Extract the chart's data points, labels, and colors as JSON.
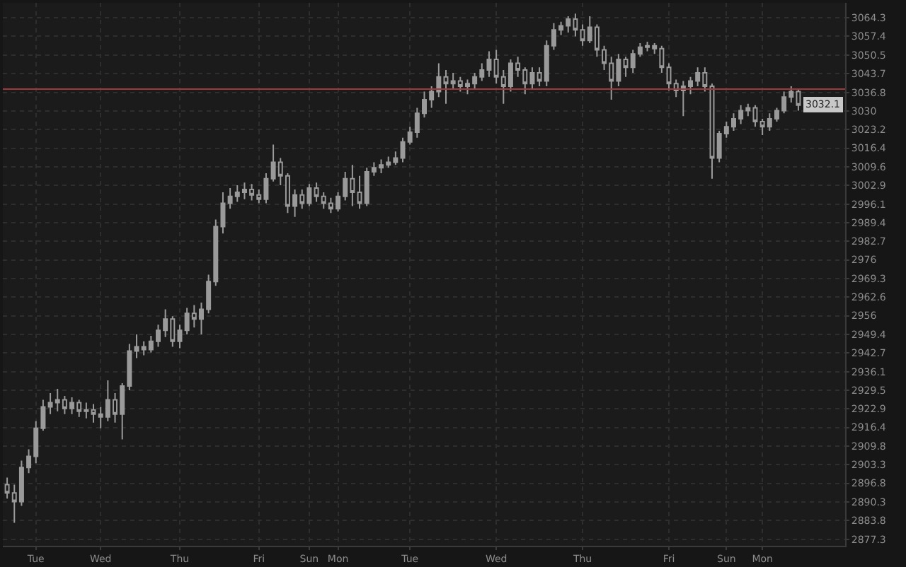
{
  "chart_data": {
    "type": "candlestick",
    "log": "y",
    "grid": true,
    "categories": [
      null,
      null,
      null,
      null,
      "Tue",
      null,
      null,
      null,
      null,
      null,
      null,
      null,
      null,
      "Wed",
      null,
      null,
      null,
      null,
      null,
      null,
      null,
      null,
      null,
      null,
      "Thu",
      null,
      null,
      null,
      null,
      null,
      null,
      null,
      null,
      null,
      null,
      "Fri",
      null,
      null,
      null,
      null,
      null,
      null,
      "Sun",
      null,
      null,
      null,
      "Mon",
      null,
      null,
      null,
      null,
      null,
      null,
      null,
      null,
      null,
      "Tue",
      null,
      null,
      null,
      null,
      null,
      null,
      null,
      null,
      null,
      null,
      null,
      "Wed",
      null,
      null,
      null,
      null,
      null,
      null,
      null,
      null,
      null,
      null,
      null,
      "Thu",
      null,
      null,
      null,
      null,
      null,
      null,
      null,
      null,
      null,
      null,
      null,
      "Fri",
      null,
      null,
      null,
      null,
      null,
      null,
      null,
      "Sun",
      null,
      null,
      null,
      null,
      "Mon",
      null,
      null,
      null,
      null,
      null
    ],
    "ohlc": [
      [
        2896.3,
        2898.8,
        2891.4,
        2893.4
      ],
      [
        2893.4,
        2896.3,
        2883.0,
        2890.4
      ],
      [
        2890.4,
        2904.7,
        2888.9,
        2902.3
      ],
      [
        2902.3,
        2908.7,
        2900.3,
        2906.2
      ],
      [
        2906.2,
        2918.6,
        2903.8,
        2916.1
      ],
      [
        2916.1,
        2926.1,
        2915.2,
        2923.6
      ],
      [
        2923.6,
        2928.5,
        2921.1,
        2925.1
      ],
      [
        2925.1,
        2930.0,
        2922.1,
        2926.1
      ],
      [
        2926.1,
        2927.5,
        2921.1,
        2923.1
      ],
      [
        2923.1,
        2927.0,
        2921.1,
        2925.1
      ],
      [
        2925.1,
        2926.1,
        2920.1,
        2922.1
      ],
      [
        2922.1,
        2925.1,
        2919.6,
        2922.6
      ],
      [
        2922.6,
        2924.6,
        2918.1,
        2921.1
      ],
      [
        2921.1,
        2923.6,
        2916.1,
        2920.1
      ],
      [
        2920.1,
        2933.0,
        2918.6,
        2926.1
      ],
      [
        2926.1,
        2928.5,
        2918.1,
        2921.1
      ],
      [
        2921.1,
        2932.0,
        2912.2,
        2931.0
      ],
      [
        2931.0,
        2945.9,
        2929.5,
        2943.4
      ],
      [
        2943.4,
        2949.3,
        2940.9,
        2944.9
      ],
      [
        2944.9,
        2946.9,
        2941.9,
        2943.9
      ],
      [
        2943.9,
        2948.8,
        2942.9,
        2946.9
      ],
      [
        2946.9,
        2952.8,
        2944.9,
        2950.8
      ],
      [
        2950.8,
        2958.3,
        2948.4,
        2954.8
      ],
      [
        2954.8,
        2955.8,
        2944.9,
        2946.9
      ],
      [
        2946.9,
        2952.8,
        2944.4,
        2950.8
      ],
      [
        2950.8,
        2958.8,
        2949.3,
        2956.8
      ],
      [
        2956.8,
        2959.8,
        2951.8,
        2954.8
      ],
      [
        2954.8,
        2960.7,
        2949.3,
        2958.3
      ],
      [
        2958.3,
        2970.7,
        2956.8,
        2968.2
      ],
      [
        2968.2,
        2990.5,
        2966.7,
        2988.0
      ],
      [
        2988.0,
        3000.4,
        2985.5,
        2996.4
      ],
      [
        2996.4,
        3001.9,
        2994.4,
        2998.9
      ],
      [
        2998.9,
        3002.9,
        2996.9,
        3000.4
      ],
      [
        3000.4,
        3003.9,
        2997.9,
        3001.4
      ],
      [
        3001.4,
        3003.4,
        2997.4,
        2999.4
      ],
      [
        2999.4,
        3001.4,
        2996.4,
        2997.9
      ],
      [
        2997.9,
        3007.3,
        2996.4,
        3005.3
      ],
      [
        3005.3,
        3017.7,
        3004.3,
        3011.3
      ],
      [
        3011.3,
        3012.8,
        3002.9,
        3006.3
      ],
      [
        3006.3,
        3007.3,
        2992.9,
        2995.4
      ],
      [
        2995.4,
        3001.4,
        2991.5,
        2999.4
      ],
      [
        2999.4,
        3001.4,
        2994.4,
        2996.4
      ],
      [
        2996.4,
        3003.4,
        2995.4,
        3001.9
      ],
      [
        3001.9,
        3003.9,
        2996.9,
        2998.9
      ],
      [
        2998.9,
        3000.4,
        2994.4,
        2996.4
      ],
      [
        2996.4,
        2998.4,
        2992.9,
        2994.4
      ],
      [
        2994.4,
        3000.4,
        2993.4,
        2998.9
      ],
      [
        2998.9,
        3007.8,
        2997.4,
        3005.3
      ],
      [
        3005.3,
        3010.3,
        2995.4,
        3000.4
      ],
      [
        3000.4,
        3006.3,
        2994.4,
        2996.4
      ],
      [
        2996.4,
        3009.3,
        2995.4,
        3007.8
      ],
      [
        3007.8,
        3011.3,
        3006.3,
        3009.3
      ],
      [
        3009.3,
        3012.3,
        3007.3,
        3010.3
      ],
      [
        3010.3,
        3013.3,
        3009.3,
        3011.3
      ],
      [
        3011.3,
        3015.2,
        3010.3,
        3012.8
      ],
      [
        3012.8,
        3020.2,
        3011.3,
        3018.7
      ],
      [
        3018.7,
        3024.2,
        3017.7,
        3022.2
      ],
      [
        3022.2,
        3031.1,
        3020.2,
        3029.1
      ],
      [
        3029.1,
        3037.1,
        3027.6,
        3034.1
      ],
      [
        3034.1,
        3039.0,
        3031.1,
        3037.1
      ],
      [
        3037.1,
        3047.5,
        3035.1,
        3042.5
      ],
      [
        3042.5,
        3045.0,
        3032.6,
        3040.0
      ],
      [
        3040.0,
        3044.0,
        3038.0,
        3041.0
      ],
      [
        3041.0,
        3042.5,
        3037.1,
        3039.0
      ],
      [
        3039.0,
        3041.5,
        3036.1,
        3040.0
      ],
      [
        3040.0,
        3044.0,
        3038.0,
        3042.5
      ],
      [
        3042.5,
        3047.5,
        3041.0,
        3045.0
      ],
      [
        3045.0,
        3051.9,
        3042.5,
        3048.9
      ],
      [
        3048.9,
        3052.4,
        3040.0,
        3042.5
      ],
      [
        3042.5,
        3045.0,
        3032.6,
        3039.0
      ],
      [
        3039.0,
        3048.9,
        3037.1,
        3047.5
      ],
      [
        3047.5,
        3049.9,
        3042.5,
        3045.0
      ],
      [
        3045.0,
        3046.0,
        3036.1,
        3040.0
      ],
      [
        3040.0,
        3046.0,
        3038.0,
        3044.0
      ],
      [
        3044.0,
        3046.0,
        3039.0,
        3041.0
      ],
      [
        3041.0,
        3055.9,
        3039.0,
        3053.9
      ],
      [
        3053.9,
        3062.3,
        3052.4,
        3059.8
      ],
      [
        3059.8,
        3062.8,
        3057.9,
        3061.3
      ],
      [
        3061.3,
        3064.8,
        3058.8,
        3063.8
      ],
      [
        3063.8,
        3065.8,
        3057.4,
        3059.8
      ],
      [
        3059.8,
        3061.8,
        3053.9,
        3055.9
      ],
      [
        3055.9,
        3064.8,
        3054.9,
        3060.8
      ],
      [
        3060.8,
        3061.8,
        3049.9,
        3052.4
      ],
      [
        3052.4,
        3053.9,
        3045.0,
        3047.5
      ],
      [
        3047.5,
        3049.9,
        3034.1,
        3041.0
      ],
      [
        3041.0,
        3050.9,
        3039.0,
        3048.9
      ],
      [
        3048.9,
        3049.9,
        3042.5,
        3046.0
      ],
      [
        3046.0,
        3052.4,
        3044.0,
        3050.9
      ],
      [
        3050.9,
        3054.9,
        3049.9,
        3053.4
      ],
      [
        3053.4,
        3055.4,
        3051.9,
        3053.9
      ],
      [
        3053.9,
        3054.9,
        3050.9,
        3052.9
      ],
      [
        3052.9,
        3053.9,
        3044.0,
        3046.0
      ],
      [
        3046.0,
        3047.5,
        3037.5,
        3040.0
      ],
      [
        3040.0,
        3041.5,
        3035.1,
        3037.5
      ],
      [
        3037.5,
        3041.0,
        3028.1,
        3039.0
      ],
      [
        3039.0,
        3042.5,
        3036.1,
        3041.0
      ],
      [
        3041.0,
        3046.0,
        3039.0,
        3044.0
      ],
      [
        3044.0,
        3046.0,
        3037.1,
        3039.0
      ],
      [
        3039.0,
        3040.0,
        3005.3,
        3012.8
      ],
      [
        3012.8,
        3022.7,
        3011.3,
        3021.7
      ],
      [
        3021.7,
        3026.1,
        3020.2,
        3024.2
      ],
      [
        3024.2,
        3029.1,
        3022.7,
        3027.1
      ],
      [
        3027.1,
        3032.1,
        3025.2,
        3030.1
      ],
      [
        3030.1,
        3032.6,
        3028.1,
        3031.1
      ],
      [
        3031.1,
        3032.1,
        3024.2,
        3026.1
      ],
      [
        3026.1,
        3027.1,
        3021.2,
        3024.2
      ],
      [
        3024.2,
        3029.1,
        3022.7,
        3027.1
      ],
      [
        3027.1,
        3031.1,
        3026.1,
        3030.1
      ],
      [
        3030.1,
        3037.1,
        3029.1,
        3035.1
      ],
      [
        3035.1,
        3039.0,
        3033.1,
        3037.1
      ],
      [
        3037.1,
        3038.0,
        3030.1,
        3032.1
      ]
    ],
    "color": "#9a9a9a",
    "ylim": [
      2875.0,
      3069.8
    ],
    "yticks": [
      3064.3,
      3057.4,
      3050.5,
      3043.7,
      3036.8,
      3030,
      3023.2,
      3016.4,
      3009.6,
      3002.9,
      2996.1,
      2989.4,
      2982.7,
      2976,
      2969.3,
      2962.6,
      2956,
      2949.4,
      2942.7,
      2936.1,
      2929.5,
      2922.9,
      2916.4,
      2909.8,
      2903.3,
      2896.8,
      2890.3,
      2883.8,
      2877.3
    ],
    "ref_lines": [
      {
        "axis": "y",
        "value": 3038.0,
        "color": "#a03a3a"
      }
    ],
    "annotations": [
      "3032.1"
    ]
  }
}
